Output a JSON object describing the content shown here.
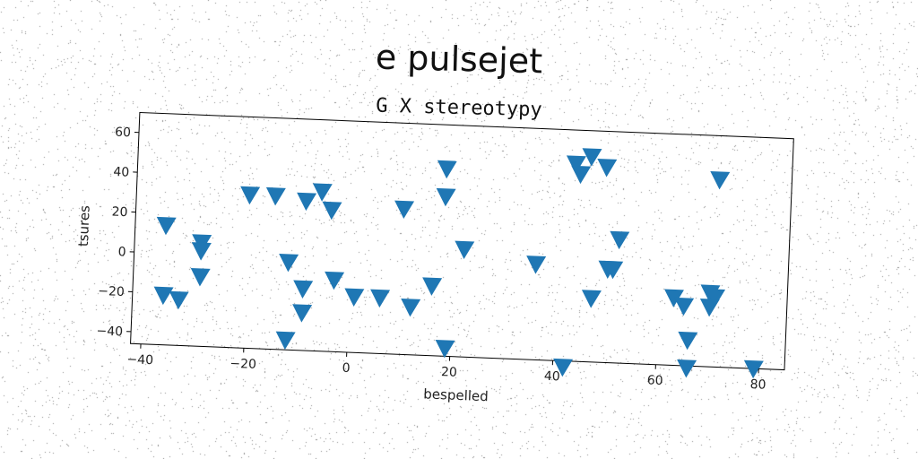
{
  "chart_data": {
    "type": "scatter",
    "title": "e pulsejet",
    "subtitle": "G X stereotypy",
    "xlabel": "bespelled",
    "ylabel": "tsures",
    "xlim": [
      -42,
      85
    ],
    "ylim": [
      -46,
      70
    ],
    "xticks": [
      -40,
      -20,
      0,
      20,
      40,
      60,
      80
    ],
    "yticks": [
      -40,
      -20,
      0,
      20,
      40,
      60
    ],
    "marker": "triangle-down",
    "color": "#1f77b4",
    "grid": false,
    "series": [
      {
        "x": [
          -36,
          -36,
          -33,
          -29,
          -29,
          -29,
          -20,
          -15,
          -12,
          -12,
          -9,
          -9,
          -9,
          -6,
          -4,
          -3,
          1,
          6,
          10,
          12,
          16,
          18,
          18,
          19,
          22,
          36,
          42,
          43,
          44,
          46,
          47,
          49,
          50,
          51,
          52,
          63,
          65,
          66,
          66,
          70,
          70,
          71,
          71,
          79
        ],
        "y": [
          14,
          -21,
          -23,
          6,
          2,
          -11,
          31,
          31,
          -41,
          -2,
          29,
          -15,
          -27,
          34,
          25,
          -10,
          -18,
          -18,
          27,
          -22,
          -11,
          48,
          34,
          -42,
          8,
          2,
          -49,
          53,
          48,
          57,
          -14,
          52,
          1,
          1,
          16,
          -12,
          -16,
          -33,
          -47,
          -9,
          -16,
          48,
          -11,
          -46
        ]
      }
    ]
  }
}
